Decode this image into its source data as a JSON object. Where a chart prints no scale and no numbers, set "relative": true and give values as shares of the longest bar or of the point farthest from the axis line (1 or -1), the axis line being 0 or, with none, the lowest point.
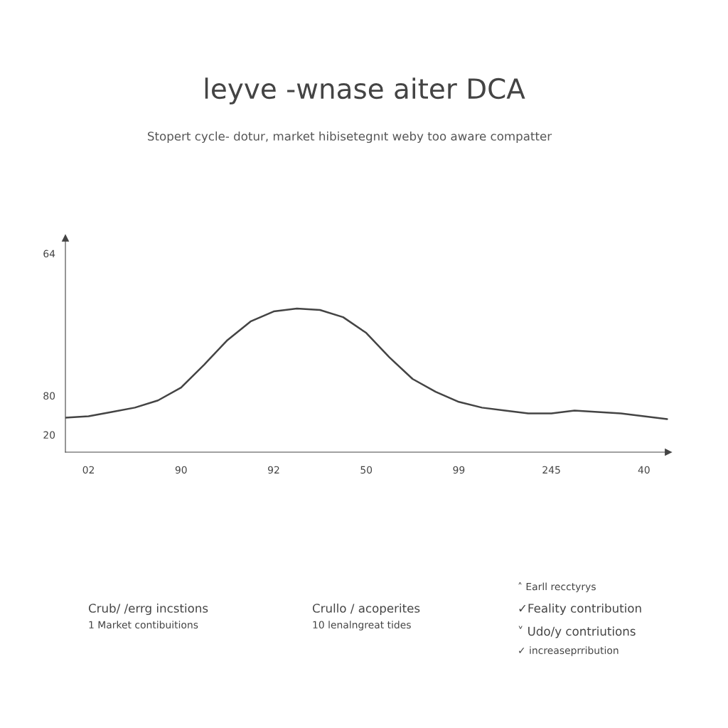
{
  "chart_data": {
    "type": "line",
    "title": "leyve -wnase aiter DCA",
    "subtitle": "Stopert cycle- dotur, market hibisetegnıt weby too aware compatter",
    "categories": [
      null,
      "02",
      null,
      null,
      null,
      "90",
      null,
      null,
      null,
      "92",
      null,
      null,
      null,
      "50",
      null,
      null,
      null,
      "99",
      null,
      null,
      null,
      "245",
      null,
      null,
      null,
      "40",
      null
    ],
    "relative": true,
    "series": [
      {
        "color": "#444444",
        "values": [
          0.24,
          0.25,
          0.28,
          0.31,
          0.36,
          0.45,
          0.61,
          0.78,
          0.91,
          0.98,
          1,
          0.99,
          0.94,
          0.83,
          0.66,
          0.51,
          0.42,
          0.35,
          0.31,
          0.29,
          0.27,
          0.27,
          0.29,
          0.28,
          0.27,
          0.25,
          0.23
        ]
      }
    ],
    "grid": false,
    "legend": false,
    "marker": "none",
    "line_style": "solid",
    "annotations": [
      "64",
      "80",
      "20",
      "Crub/ /errg incstions",
      "1 Market contibuitions",
      "Crullo / acoperites",
      "10 lenalngreat tides",
      "˄ Earll recctyrys",
      "✓Feality contribution",
      "˅ Udo/y contriutions",
      "✓ increaseprribution"
    ]
  }
}
